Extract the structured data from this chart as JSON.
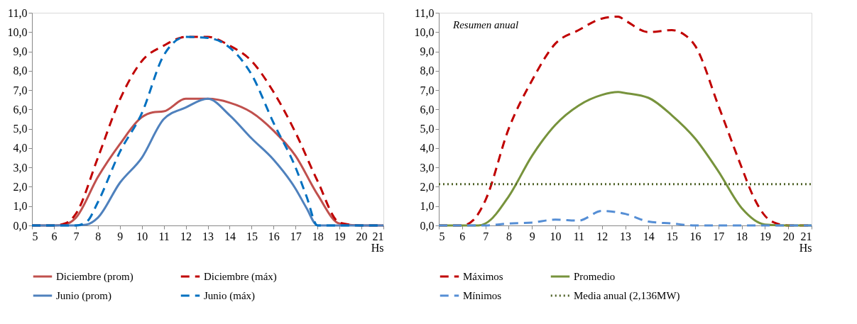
{
  "chart_data": [
    {
      "type": "line",
      "xlabel": "Hs",
      "legend": "bottom",
      "xlim": [
        5,
        21
      ],
      "xticks": [
        5,
        6,
        7,
        8,
        9,
        10,
        11,
        12,
        13,
        14,
        15,
        16,
        17,
        18,
        19,
        20,
        21
      ],
      "ylim": [
        0,
        11
      ],
      "yticks": [
        {
          "value": 0,
          "label": "0,0"
        },
        {
          "value": 1,
          "label": "1,0"
        },
        {
          "value": 2,
          "label": "2,0"
        },
        {
          "value": 3,
          "label": "3,0"
        },
        {
          "value": 4,
          "label": "4,0"
        },
        {
          "value": 5,
          "label": "5,0"
        },
        {
          "value": 6,
          "label": "6,0"
        },
        {
          "value": 7,
          "label": "7,0"
        },
        {
          "value": 8,
          "label": "8,0"
        },
        {
          "value": 9,
          "label": "9,0"
        },
        {
          "value": 10,
          "label": "10,0"
        },
        {
          "value": 11,
          "label": "11,0"
        }
      ],
      "series": [
        {
          "name": "Diciembre (prom)",
          "color": "#c0504d",
          "line_style": "solid",
          "x": [
            5,
            6,
            6.5,
            7,
            8,
            9,
            10,
            10.5,
            11,
            12,
            13,
            14,
            15,
            16,
            17,
            18,
            19,
            20,
            21
          ],
          "values": [
            0,
            0,
            0.05,
            0.4,
            2.5,
            4.2,
            5.6,
            5.85,
            5.9,
            6.55,
            6.55,
            6.35,
            5.85,
            4.9,
            3.6,
            1.6,
            0.1,
            0,
            0
          ]
        },
        {
          "name": "Diciembre (máx)",
          "color": "#c00000",
          "line_style": "dashed",
          "x": [
            5,
            6,
            6.5,
            7,
            8,
            9,
            10,
            11,
            12,
            13,
            14,
            15,
            16,
            17,
            18,
            19,
            20,
            21
          ],
          "values": [
            0,
            0,
            0.1,
            0.6,
            3.5,
            6.5,
            8.5,
            9.3,
            9.75,
            9.75,
            9.3,
            8.5,
            6.9,
            4.8,
            2.3,
            0.15,
            0,
            0
          ]
        },
        {
          "name": "Junio (prom)",
          "color": "#4f81bd",
          "line_style": "solid",
          "x": [
            5,
            7,
            7.5,
            8,
            9,
            10,
            11,
            12,
            13,
            14,
            15,
            16,
            17,
            17.5,
            18,
            19,
            21
          ],
          "values": [
            0,
            0,
            0.05,
            0.4,
            2.2,
            3.5,
            5.5,
            6.1,
            6.55,
            5.7,
            4.5,
            3.4,
            1.9,
            0.9,
            0,
            0,
            0
          ]
        },
        {
          "name": "Junio (máx)",
          "color": "#0070c0",
          "line_style": "dashed",
          "x": [
            5,
            7,
            7.5,
            8,
            9,
            10,
            11,
            12,
            13,
            14,
            15,
            16,
            17,
            17.5,
            18,
            21
          ],
          "values": [
            0,
            0,
            0.2,
            1.2,
            3.8,
            5.8,
            8.8,
            9.75,
            9.7,
            9.2,
            7.8,
            5.3,
            3.0,
            1.5,
            0,
            0
          ]
        }
      ]
    },
    {
      "type": "line",
      "xlabel": "Hs",
      "legend": "bottom",
      "annotations": [
        "Resumen anual"
      ],
      "xlim": [
        5,
        21
      ],
      "xticks": [
        5,
        6,
        7,
        8,
        9,
        10,
        11,
        12,
        13,
        14,
        15,
        16,
        17,
        18,
        19,
        20,
        21
      ],
      "ylim": [
        0,
        11
      ],
      "yticks": [
        {
          "value": 0,
          "label": "0,0"
        },
        {
          "value": 1,
          "label": "1,0"
        },
        {
          "value": 2,
          "label": "2,0"
        },
        {
          "value": 3,
          "label": "3,0"
        },
        {
          "value": 4,
          "label": "4,0"
        },
        {
          "value": 5,
          "label": "5,0"
        },
        {
          "value": 6,
          "label": "6,0"
        },
        {
          "value": 7,
          "label": "7,0"
        },
        {
          "value": 8,
          "label": "8,0"
        },
        {
          "value": 9,
          "label": "9,0"
        },
        {
          "value": 10,
          "label": "10,0"
        },
        {
          "value": 11,
          "label": "11,0"
        }
      ],
      "series": [
        {
          "name": "Máximos",
          "color": "#c00000",
          "line_style": "dashed",
          "x": [
            5,
            6,
            6.5,
            7,
            8,
            9,
            10,
            11,
            12,
            12.7,
            13,
            14,
            15,
            15.5,
            16,
            17,
            18,
            18.5,
            19,
            19.5,
            20,
            21
          ],
          "values": [
            0,
            0,
            0.3,
            1.3,
            5.0,
            7.5,
            9.4,
            10.1,
            10.7,
            10.8,
            10.6,
            10.0,
            10.1,
            9.9,
            9.3,
            6.2,
            3.0,
            1.5,
            0.5,
            0.1,
            0,
            0
          ]
        },
        {
          "name": "Promedio",
          "color": "#77933c",
          "line_style": "solid",
          "x": [
            5,
            6,
            6.7,
            7,
            8,
            9,
            10,
            11,
            12,
            12.7,
            13,
            14,
            15,
            16,
            17,
            18,
            19,
            20,
            21
          ],
          "values": [
            0,
            0,
            0,
            0.1,
            1.5,
            3.6,
            5.2,
            6.2,
            6.75,
            6.9,
            6.85,
            6.6,
            5.7,
            4.5,
            2.8,
            0.9,
            0.05,
            0,
            0
          ]
        },
        {
          "name": "Mínimos",
          "color": "#558ed5",
          "line_style": "dashed",
          "x": [
            5,
            7,
            8,
            9,
            10,
            11,
            12,
            13,
            14,
            15,
            16,
            21
          ],
          "values": [
            0,
            0,
            0.1,
            0.15,
            0.3,
            0.25,
            0.75,
            0.6,
            0.2,
            0.1,
            0,
            0
          ]
        },
        {
          "name": "Media anual (2,136MW)",
          "color": "#4f6228",
          "line_style": "dotted",
          "x": [
            5,
            21
          ],
          "values": [
            2.136,
            2.136
          ]
        }
      ]
    }
  ]
}
